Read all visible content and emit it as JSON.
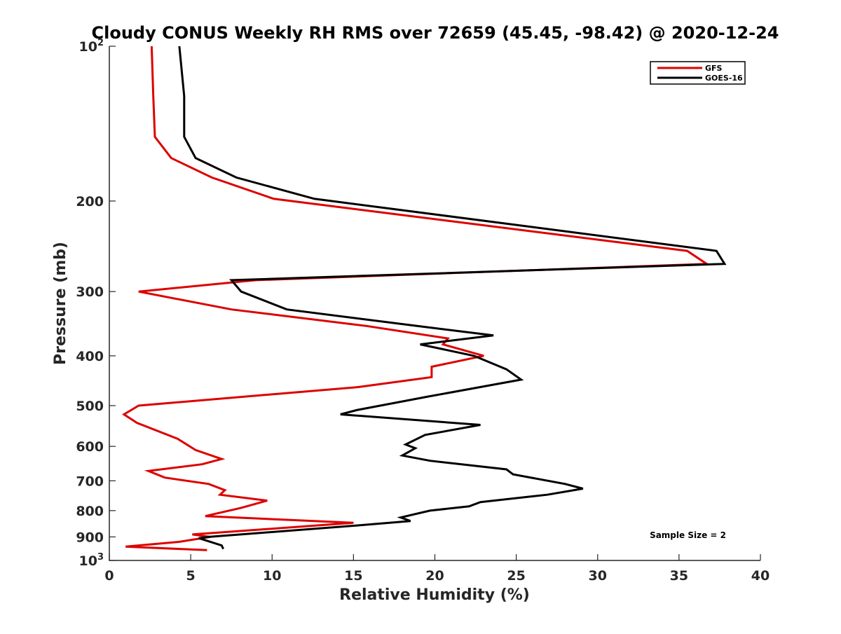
{
  "chart_data": {
    "type": "line",
    "title": "Cloudy CONUS Weekly RH RMS over 72659 (45.45, -98.42) @ 2020-12-24",
    "xlabel": "Relative Humidity (%)",
    "ylabel": "Pressure (mb)",
    "xlim": [
      0,
      40
    ],
    "ylim": [
      100,
      1000
    ],
    "y_scale": "log",
    "y_reversed": true,
    "grid": false,
    "legend_position": "top-right",
    "x_ticks": [
      0,
      5,
      10,
      15,
      20,
      25,
      30,
      35,
      40
    ],
    "x_tick_labels": [
      "0",
      "5",
      "10",
      "15",
      "20",
      "25",
      "30",
      "35",
      "40"
    ],
    "y_ticks": [
      {
        "value": 100,
        "base": "10",
        "exp": "2"
      },
      {
        "value": 200,
        "label": "200"
      },
      {
        "value": 300,
        "label": "300"
      },
      {
        "value": 400,
        "label": "400"
      },
      {
        "value": 500,
        "label": "500"
      },
      {
        "value": 600,
        "label": "600"
      },
      {
        "value": 700,
        "label": "700"
      },
      {
        "value": 800,
        "label": "800"
      },
      {
        "value": 900,
        "label": "900"
      },
      {
        "value": 1000,
        "base": "10",
        "exp": "3"
      }
    ],
    "series": [
      {
        "name": "GFS",
        "color": "#dd0000",
        "points": [
          [
            2.6,
            100
          ],
          [
            2.7,
            125
          ],
          [
            2.8,
            150
          ],
          [
            3.8,
            165
          ],
          [
            6.3,
            180
          ],
          [
            10.1,
            198
          ],
          [
            35.5,
            250
          ],
          [
            36.7,
            265
          ],
          [
            9.0,
            285
          ],
          [
            1.8,
            300
          ],
          [
            7.5,
            325
          ],
          [
            15.8,
            350
          ],
          [
            20.8,
            370
          ],
          [
            20.5,
            380
          ],
          [
            23.0,
            400
          ],
          [
            19.8,
            420
          ],
          [
            19.8,
            440
          ],
          [
            15.3,
            460
          ],
          [
            1.8,
            500
          ],
          [
            0.9,
            520
          ],
          [
            1.7,
            540
          ],
          [
            4.2,
            580
          ],
          [
            5.3,
            610
          ],
          [
            6.9,
            635
          ],
          [
            5.7,
            650
          ],
          [
            2.4,
            670
          ],
          [
            3.4,
            690
          ],
          [
            6.1,
            710
          ],
          [
            7.1,
            730
          ],
          [
            6.8,
            745
          ],
          [
            9.7,
            765
          ],
          [
            8.1,
            790
          ],
          [
            5.9,
            820
          ],
          [
            15.0,
            845
          ],
          [
            5.1,
            890
          ],
          [
            6.2,
            900
          ],
          [
            4.3,
            920
          ],
          [
            1.0,
            940
          ],
          [
            6.0,
            955
          ]
        ]
      },
      {
        "name": "GOES-16",
        "color": "#000000",
        "points": [
          [
            4.3,
            100
          ],
          [
            4.6,
            125
          ],
          [
            4.6,
            150
          ],
          [
            5.3,
            165
          ],
          [
            7.8,
            180
          ],
          [
            12.6,
            198
          ],
          [
            37.3,
            250
          ],
          [
            37.8,
            265
          ],
          [
            7.5,
            285
          ],
          [
            8.1,
            300
          ],
          [
            10.9,
            325
          ],
          [
            18.9,
            350
          ],
          [
            23.6,
            365
          ],
          [
            19.1,
            380
          ],
          [
            22.4,
            400
          ],
          [
            24.4,
            425
          ],
          [
            25.3,
            445
          ],
          [
            19.6,
            480
          ],
          [
            15.2,
            510
          ],
          [
            14.2,
            520
          ],
          [
            22.8,
            545
          ],
          [
            19.4,
            570
          ],
          [
            18.2,
            595
          ],
          [
            18.8,
            605
          ],
          [
            18.0,
            625
          ],
          [
            19.7,
            640
          ],
          [
            24.4,
            665
          ],
          [
            24.8,
            680
          ],
          [
            28.0,
            710
          ],
          [
            29.1,
            725
          ],
          [
            26.9,
            745
          ],
          [
            22.8,
            770
          ],
          [
            22.1,
            785
          ],
          [
            19.7,
            800
          ],
          [
            17.9,
            825
          ],
          [
            18.5,
            838
          ],
          [
            15.2,
            855
          ],
          [
            6.1,
            900
          ],
          [
            5.5,
            905
          ],
          [
            6.9,
            935
          ],
          [
            7.0,
            950
          ]
        ]
      }
    ],
    "annotations": [
      {
        "text": "Sample Size = 2",
        "x": 33.2,
        "y": 905
      }
    ]
  }
}
